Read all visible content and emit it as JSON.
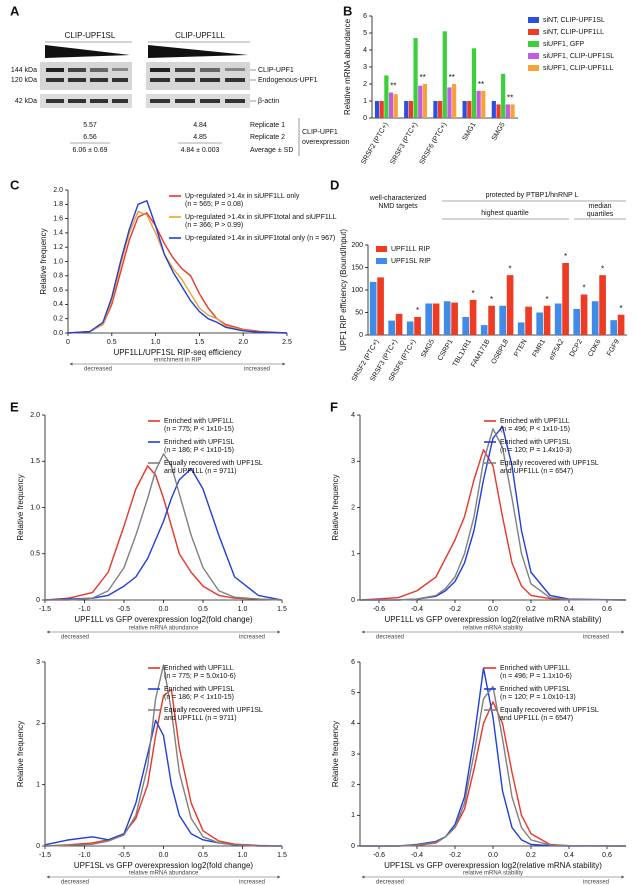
{
  "blot": {
    "panel": "A",
    "groups": [
      {
        "label": "CLIP-UPF1SL",
        "values": [
          "5.57",
          "6.56",
          "6.06 ± 0.69"
        ]
      },
      {
        "label": "CLIP-UPF1LL",
        "values": [
          "4.84",
          "4.85",
          "4.84 ± 0.003"
        ]
      }
    ],
    "markers": [
      "144 kDa",
      "120 kDa",
      "42 kDa"
    ],
    "bands": [
      "CLIP-UPF1",
      "Endogenous-UPF1",
      "β-actin"
    ],
    "rows": [
      "Replicate 1",
      "Replicate 2",
      "Average ± SD"
    ],
    "note": [
      "CLIP-UPF1",
      "overexpression"
    ]
  },
  "chart_data": [
    {
      "type": "bar",
      "panel": "B",
      "ylabel": "Relative mRNA abundance",
      "categories": [
        "SRSF2 (PTC+)",
        "SRSF3 (PTC+)",
        "SRSF6 (PTC+)",
        "SMG1",
        "SMG5"
      ],
      "series": [
        {
          "name": "siNT, CLIP-UPF1SL",
          "color": "#2b4fe0",
          "values": [
            1.0,
            1.0,
            1.0,
            1.0,
            1.0
          ]
        },
        {
          "name": "siNT, CLIP-UPF1LL",
          "color": "#ee3b24",
          "values": [
            1.0,
            1.0,
            1.0,
            1.0,
            0.8
          ]
        },
        {
          "name": "siUPF1, GFP",
          "color": "#3ccf3c",
          "values": [
            2.5,
            4.7,
            5.1,
            4.1,
            2.6
          ]
        },
        {
          "name": "siUPF1, CLIP-UPF1SL",
          "color": "#c05ce0",
          "values": [
            1.5,
            1.9,
            1.8,
            1.6,
            0.8
          ]
        },
        {
          "name": "siUPF1, CLIP-UPF1LL",
          "color": "#f5a23a",
          "values": [
            1.4,
            2.0,
            2.0,
            1.6,
            0.8
          ]
        }
      ],
      "ylim": [
        0,
        6
      ],
      "yticks": [
        0,
        1,
        2,
        3,
        4,
        5,
        6
      ],
      "legend": "right",
      "annotations": [
        {
          "text": "**",
          "category": "SRSF2 (PTC+)"
        },
        {
          "text": "**",
          "category": "SRSF3 (PTC+)"
        },
        {
          "text": "**",
          "category": "SRSF6 (PTC+)"
        },
        {
          "text": "**",
          "category": "SMG1"
        },
        {
          "text": "**",
          "category": "SMG5"
        }
      ]
    },
    {
      "type": "line",
      "panel": "C",
      "ylabel": "Relative frequency",
      "xlabel": "UPF1LL/UPF1SL RIP-seq efficiency",
      "x": [
        0,
        0.25,
        0.4,
        0.5,
        0.6,
        0.7,
        0.8,
        0.9,
        1.0,
        1.1,
        1.2,
        1.3,
        1.4,
        1.5,
        1.6,
        1.7,
        1.8,
        2.0,
        2.2,
        2.5
      ],
      "series": [
        {
          "name": "Up-regulated >1.4x in siUPF1LL only",
          "note": "(n = 565; P = 0.08)",
          "color": "#e8362a",
          "values": [
            0,
            0.02,
            0.12,
            0.4,
            0.85,
            1.3,
            1.62,
            1.68,
            1.5,
            1.25,
            1.05,
            0.9,
            0.8,
            0.55,
            0.35,
            0.2,
            0.12,
            0.05,
            0.02,
            0
          ]
        },
        {
          "name": "Up-regulated >1.4x in siUPF1total and siUPF1LL",
          "note": "(n = 366; P > 0.99)",
          "color": "#f0a030",
          "values": [
            0,
            0.02,
            0.12,
            0.45,
            0.95,
            1.4,
            1.7,
            1.65,
            1.4,
            1.1,
            0.9,
            0.75,
            0.55,
            0.35,
            0.25,
            0.2,
            0.1,
            0.04,
            0.01,
            0
          ]
        },
        {
          "name": "Up-regulated >1.4x in siUPF1total only (n = 967)",
          "color": "#1f3fd8",
          "values": [
            0,
            0.02,
            0.15,
            0.5,
            1.0,
            1.45,
            1.8,
            1.85,
            1.5,
            1.1,
            0.85,
            0.65,
            0.45,
            0.3,
            0.2,
            0.15,
            0.08,
            0.03,
            0.01,
            0
          ]
        }
      ],
      "xlim": [
        0,
        2.5
      ],
      "xticks": [
        0,
        0.5,
        {
          "value": 1,
          "label": "1.0"
        },
        1.5,
        {
          "value": 2,
          "label": "2.0"
        },
        2.5
      ],
      "ylim": [
        0,
        2
      ],
      "yticks": [
        {
          "value": 0,
          "label": "0.0"
        },
        0.2,
        0.4,
        0.6,
        0.8,
        {
          "value": 1,
          "label": "1.0"
        },
        1.2,
        1.4,
        1.6,
        1.8,
        {
          "value": 2,
          "label": "2.0"
        }
      ],
      "legend": "upper right",
      "footer": {
        "left": "decreased",
        "center": "enrichment in RIP",
        "right": "increased"
      }
    },
    {
      "type": "bar",
      "panel": "D",
      "ylabel": "UPF1 RIP efficiency (Bound/Input)",
      "headers": [
        "well-characterized",
        "NMD targets",
        "protected by PTBP1/hnRNP L",
        "highest quartile",
        "median",
        "quartiles"
      ],
      "categories": [
        "SRSF2 (PTC+)",
        "SRSF3 (PTC+)",
        "SRSF6 (PTC+)",
        "SMG5",
        "CSRP1",
        "TBL1XR1",
        "FAM171B",
        "OSBPL8",
        "PTEN",
        "FMR1",
        "eIF5A2",
        "DCP2",
        "CDK6",
        "FGF9"
      ],
      "series": [
        {
          "name": "UPF1LL RIP",
          "color": "#ee3b24",
          "values": [
            128,
            47,
            40,
            70,
            72,
            78,
            65,
            133,
            63,
            65,
            160,
            90,
            133,
            45
          ]
        },
        {
          "name": "UPF1SL RIP",
          "color": "#3f8be8",
          "values": [
            118,
            32,
            30,
            70,
            75,
            40,
            22,
            65,
            28,
            50,
            70,
            58,
            75,
            33
          ]
        }
      ],
      "ylim": [
        0,
        200
      ],
      "yticks": [
        0,
        50,
        100,
        150,
        200
      ],
      "legend": "upper left",
      "annotations": [
        {
          "text": "*",
          "category": "SRSF6 (PTC+)"
        },
        {
          "text": "*",
          "category": "TBL1XR1"
        },
        {
          "text": "*",
          "category": "FAM171B"
        },
        {
          "text": "*",
          "category": "OSBPL8"
        },
        {
          "text": "*",
          "category": "FMR1"
        },
        {
          "text": "*",
          "category": "eIF5A2"
        },
        {
          "text": "*",
          "category": "DCP2"
        },
        {
          "text": "*",
          "category": "CDK6"
        },
        {
          "text": "*",
          "category": "FGF9"
        }
      ]
    },
    {
      "type": "line",
      "panel": "E",
      "ylabel": "Relative frequency",
      "xlabel": "UPF1LL vs GFP overexpression log2(fold change)",
      "x": [
        -1.5,
        -1.2,
        -0.9,
        -0.7,
        -0.5,
        -0.35,
        -0.2,
        -0.1,
        0,
        0.1,
        0.2,
        0.35,
        0.5,
        0.7,
        0.9,
        1.2,
        1.5
      ],
      "series": [
        {
          "name": "Enriched with UPF1LL",
          "note": "(n = 775; P < 1x10-15)",
          "color": "#e8362a",
          "values": [
            0,
            0.02,
            0.08,
            0.3,
            0.8,
            1.2,
            1.45,
            1.35,
            1.1,
            0.8,
            0.5,
            0.3,
            0.15,
            0.05,
            0.02,
            0.01,
            0
          ]
        },
        {
          "name": "Enriched with UPF1SL",
          "note": "(n = 186; P < 1x10-15)",
          "color": "#1f3fd8",
          "values": [
            0,
            0.01,
            0.02,
            0.05,
            0.15,
            0.25,
            0.45,
            0.65,
            0.85,
            1.1,
            1.3,
            1.42,
            1.2,
            0.7,
            0.25,
            0.05,
            0
          ]
        },
        {
          "name": "Equally recovered with UPF1SL",
          "note": "and UPF1LL (n = 9711)",
          "color": "#808080",
          "values": [
            0,
            0,
            0.02,
            0.1,
            0.35,
            0.7,
            1.1,
            1.4,
            1.58,
            1.45,
            1.15,
            0.7,
            0.35,
            0.1,
            0.03,
            0.01,
            0
          ]
        }
      ],
      "xlim": [
        -1.5,
        1.5
      ],
      "xticks": [
        -1.5,
        {
          "value": -1,
          "label": "-1.0"
        },
        -0.5,
        {
          "value": 0,
          "label": "0.0"
        },
        0.5,
        {
          "value": 1,
          "label": "1.0"
        },
        1.5
      ],
      "ylim": [
        0,
        2
      ],
      "yticks": [
        0,
        0.5,
        {
          "value": 1,
          "label": "1.0"
        },
        1.5,
        {
          "value": 2,
          "label": "2.0"
        }
      ],
      "legend": "upper right",
      "footer": {
        "left": "decreased",
        "center": "relative mRNA abundance",
        "right": "increased"
      }
    },
    {
      "type": "line",
      "panel": "F",
      "ylabel": "Relative frequency",
      "xlabel": "UPF1LL vs GFP overexpression log2(relative mRNA stability)",
      "x": [
        -0.7,
        -0.5,
        -0.4,
        -0.3,
        -0.25,
        -0.2,
        -0.15,
        -0.1,
        -0.05,
        0,
        0.05,
        0.1,
        0.15,
        0.2,
        0.3,
        0.4,
        0.7
      ],
      "series": [
        {
          "name": "Enriched with UPF1LL",
          "note": "(n = 496; P < 1x10-15)",
          "color": "#e8362a",
          "values": [
            0,
            0.05,
            0.2,
            0.5,
            0.9,
            1.3,
            1.8,
            2.6,
            3.25,
            2.9,
            1.8,
            0.8,
            0.3,
            0.1,
            0.03,
            0.01,
            0
          ]
        },
        {
          "name": "Enriched with UPF1SL",
          "note": "(n = 120; P = 1.4x10-3)",
          "color": "#1f3fd8",
          "values": [
            0,
            0,
            0.02,
            0.08,
            0.2,
            0.4,
            0.8,
            1.5,
            2.6,
            3.5,
            3.75,
            2.9,
            1.5,
            0.6,
            0.1,
            0.02,
            0
          ]
        },
        {
          "name": "Equally recovered with UPF1SL",
          "note": "and UPF1LL (n = 6547)",
          "color": "#808080",
          "values": [
            0,
            0,
            0.02,
            0.1,
            0.25,
            0.5,
            1.0,
            1.8,
            3.0,
            3.7,
            3.3,
            2.2,
            1.0,
            0.35,
            0.05,
            0.01,
            0
          ]
        }
      ],
      "xlim": [
        -0.7,
        0.7
      ],
      "xticks": [
        -0.6,
        -0.4,
        -0.2,
        {
          "value": 0,
          "label": "0.0"
        },
        0.2,
        0.4,
        0.6
      ],
      "ylim": [
        0,
        4
      ],
      "yticks": [
        0,
        1,
        2,
        3,
        4
      ],
      "legend": "upper right",
      "footer": {
        "left": "decreased",
        "center": "relative mRNA stability",
        "right": "increased"
      }
    },
    {
      "type": "line",
      "ylabel": "Relative frequency",
      "xlabel": "UPF1SL vs GFP overexpression log2(fold change)",
      "x": [
        -1.5,
        -1.2,
        -0.9,
        -0.7,
        -0.5,
        -0.35,
        -0.2,
        -0.1,
        0,
        0.1,
        0.2,
        0.35,
        0.5,
        0.7,
        0.9,
        1.2,
        1.5
      ],
      "series": [
        {
          "name": "Enriched with UPF1LL",
          "note": "(n = 775; P = 5.0x10-6)",
          "color": "#e8362a",
          "values": [
            0,
            0.02,
            0.05,
            0.1,
            0.2,
            0.45,
            1.0,
            1.8,
            2.45,
            2.55,
            1.6,
            0.7,
            0.25,
            0.08,
            0.03,
            0.01,
            0
          ]
        },
        {
          "name": "Enriched with UPF1SL",
          "note": "(n = 186; P < 1x10-15)",
          "color": "#1f3fd8",
          "values": [
            0.02,
            0.1,
            0.15,
            0.1,
            0.2,
            0.7,
            1.5,
            2.05,
            1.8,
            1.0,
            0.5,
            0.2,
            0.1,
            0.05,
            0.02,
            0,
            0
          ]
        },
        {
          "name": "Equally recovered with UPF1SL",
          "note": "and UPF1LL (n = 9711)",
          "color": "#808080",
          "values": [
            0,
            0.01,
            0.03,
            0.08,
            0.18,
            0.5,
            1.3,
            2.4,
            2.95,
            2.2,
            1.2,
            0.45,
            0.15,
            0.05,
            0.02,
            0,
            0
          ]
        }
      ],
      "xlim": [
        -1.5,
        1.5
      ],
      "xticks": [
        -1.5,
        {
          "value": -1,
          "label": "-1.0"
        },
        -0.5,
        {
          "value": 0,
          "label": "0.0"
        },
        0.5,
        {
          "value": 1,
          "label": "1.0"
        },
        1.5
      ],
      "ylim": [
        0,
        3
      ],
      "yticks": [
        0,
        1,
        2,
        3
      ],
      "legend": "upper right",
      "footer": {
        "left": "decreased",
        "center": "relative mRNA abundance",
        "right": "increased"
      }
    },
    {
      "type": "line",
      "ylabel": "Relative frequency",
      "xlabel": "UPF1SL vs GFP overexpression log2(relative mRNA stability)",
      "x": [
        -0.7,
        -0.5,
        -0.4,
        -0.3,
        -0.25,
        -0.2,
        -0.15,
        -0.1,
        -0.05,
        0,
        0.05,
        0.1,
        0.15,
        0.2,
        0.3,
        0.4,
        0.7
      ],
      "series": [
        {
          "name": "Enriched with UPF1LL",
          "note": "(n = 496; P = 1.1x10-6)",
          "color": "#e8362a",
          "values": [
            0,
            0,
            0.02,
            0.1,
            0.3,
            0.6,
            1.2,
            2.5,
            4.0,
            4.7,
            4.0,
            2.4,
            1.0,
            0.4,
            0.05,
            0.01,
            0
          ]
        },
        {
          "name": "Enriched with UPF1SL",
          "note": "(n = 120; P = 1.0x10-13)",
          "color": "#1f3fd8",
          "values": [
            0,
            0,
            0.05,
            0.15,
            0.3,
            0.7,
            1.6,
            3.5,
            5.8,
            4.2,
            1.8,
            0.6,
            0.2,
            0.05,
            0.01,
            0,
            0
          ]
        },
        {
          "name": "Equally recovered with UPF1SL",
          "note": "and UPF1LL (n = 6547)",
          "color": "#808080",
          "values": [
            0,
            0,
            0.03,
            0.12,
            0.3,
            0.6,
            1.4,
            3.0,
            4.8,
            5.2,
            3.5,
            1.6,
            0.6,
            0.2,
            0.03,
            0.01,
            0
          ]
        }
      ],
      "xlim": [
        -0.7,
        0.7
      ],
      "xticks": [
        -0.6,
        -0.4,
        -0.2,
        {
          "value": 0,
          "label": "0.0"
        },
        0.2,
        0.4,
        0.6
      ],
      "ylim": [
        0,
        6
      ],
      "yticks": [
        0,
        1,
        2,
        3,
        4,
        5,
        6
      ],
      "legend": "upper right",
      "footer": {
        "left": "decreased",
        "center": "relative mRNA stability",
        "right": "increased"
      }
    }
  ]
}
